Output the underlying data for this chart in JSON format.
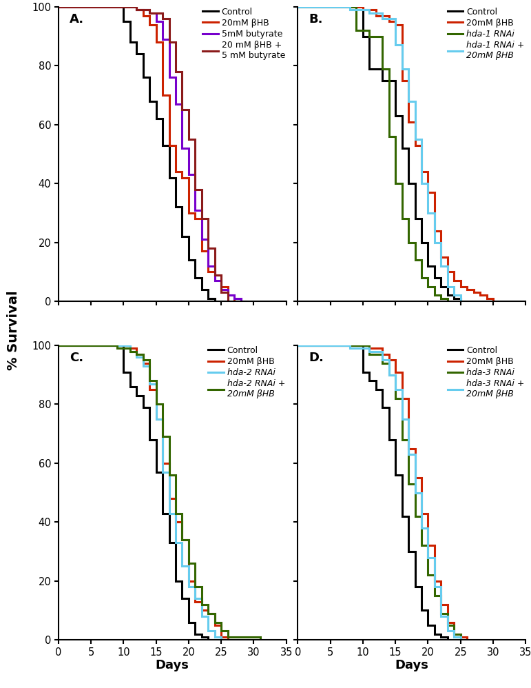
{
  "panel_A": {
    "label": "A.",
    "series": [
      {
        "name": "Control",
        "color": "#000000",
        "lw": 2.2,
        "x": [
          0,
          10,
          10,
          11,
          11,
          12,
          12,
          13,
          13,
          14,
          14,
          15,
          15,
          16,
          16,
          17,
          17,
          18,
          18,
          19,
          19,
          20,
          20,
          21,
          21,
          22,
          22,
          23,
          23,
          24,
          24
        ],
        "y": [
          100,
          100,
          95,
          95,
          88,
          88,
          84,
          84,
          76,
          76,
          68,
          68,
          62,
          62,
          53,
          53,
          42,
          42,
          32,
          32,
          22,
          22,
          14,
          14,
          8,
          8,
          4,
          4,
          1,
          1,
          0
        ]
      },
      {
        "name": "20mM βHB",
        "color": "#cc2200",
        "lw": 2.2,
        "x": [
          0,
          12,
          12,
          13,
          13,
          14,
          14,
          15,
          15,
          16,
          16,
          17,
          17,
          18,
          18,
          19,
          19,
          20,
          20,
          21,
          21,
          22,
          22,
          23,
          23,
          24,
          24,
          25,
          25,
          26,
          26,
          27,
          27
        ],
        "y": [
          100,
          100,
          99,
          99,
          97,
          97,
          94,
          94,
          88,
          88,
          70,
          70,
          53,
          53,
          44,
          44,
          42,
          42,
          30,
          30,
          28,
          28,
          17,
          17,
          10,
          10,
          9,
          9,
          5,
          5,
          2,
          2,
          0
        ]
      },
      {
        "name": "5mM butyrate",
        "color": "#7700cc",
        "lw": 2.2,
        "x": [
          0,
          12,
          12,
          14,
          14,
          15,
          15,
          16,
          16,
          17,
          17,
          18,
          18,
          19,
          19,
          20,
          20,
          21,
          21,
          22,
          22,
          23,
          23,
          24,
          24,
          25,
          25,
          26,
          26,
          27,
          27,
          28,
          28,
          29,
          29
        ],
        "y": [
          100,
          100,
          99,
          99,
          98,
          98,
          95,
          95,
          89,
          89,
          76,
          76,
          67,
          67,
          52,
          52,
          43,
          43,
          31,
          31,
          21,
          21,
          12,
          12,
          7,
          7,
          4,
          4,
          2,
          2,
          1,
          1,
          0,
          0,
          0
        ]
      },
      {
        "name": "20 mM βHB +\n5 mM butyrate",
        "color": "#8B1A1A",
        "lw": 2.2,
        "x": [
          0,
          12,
          12,
          14,
          14,
          16,
          16,
          17,
          17,
          18,
          18,
          19,
          19,
          20,
          20,
          21,
          21,
          22,
          22,
          23,
          23,
          24,
          24,
          25,
          25,
          26,
          26
        ],
        "y": [
          100,
          100,
          99,
          99,
          98,
          98,
          96,
          96,
          88,
          88,
          78,
          78,
          65,
          65,
          55,
          55,
          38,
          38,
          28,
          28,
          18,
          18,
          9,
          9,
          3,
          3,
          0
        ]
      }
    ],
    "legend_labels": [
      "Control",
      "20mM βHB",
      "5mM butyrate",
      "20 mM βHB +\n5 mM butyrate"
    ],
    "legend_italic": [
      false,
      false,
      false,
      false
    ]
  },
  "panel_B": {
    "label": "B.",
    "series": [
      {
        "name": "Control",
        "color": "#000000",
        "lw": 2.2,
        "x": [
          0,
          10,
          10,
          11,
          11,
          13,
          13,
          15,
          15,
          16,
          16,
          17,
          17,
          18,
          18,
          19,
          19,
          20,
          20,
          21,
          21,
          22,
          22,
          23,
          23,
          24,
          24,
          25,
          25
        ],
        "y": [
          100,
          100,
          90,
          90,
          79,
          79,
          75,
          75,
          63,
          63,
          52,
          52,
          40,
          40,
          28,
          28,
          20,
          20,
          12,
          12,
          8,
          8,
          5,
          5,
          2,
          2,
          1,
          1,
          0
        ]
      },
      {
        "name": "20mM βHB",
        "color": "#cc2200",
        "lw": 2.2,
        "x": [
          0,
          10,
          10,
          12,
          12,
          14,
          14,
          15,
          15,
          16,
          16,
          17,
          17,
          18,
          18,
          19,
          19,
          20,
          20,
          21,
          21,
          22,
          22,
          23,
          23,
          24,
          24,
          25,
          25,
          26,
          26,
          27,
          27,
          28,
          28,
          29,
          29,
          30,
          30
        ],
        "y": [
          100,
          100,
          99,
          99,
          97,
          97,
          95,
          95,
          94,
          94,
          75,
          75,
          61,
          61,
          53,
          53,
          44,
          44,
          37,
          37,
          24,
          24,
          15,
          15,
          10,
          10,
          7,
          7,
          5,
          5,
          4,
          4,
          3,
          3,
          2,
          2,
          1,
          1,
          0
        ]
      },
      {
        "name": "hda-1 RNAi",
        "color": "#336600",
        "lw": 2.2,
        "x": [
          0,
          9,
          9,
          11,
          11,
          13,
          13,
          14,
          14,
          15,
          15,
          16,
          16,
          17,
          17,
          18,
          18,
          19,
          19,
          20,
          20,
          21,
          21,
          22,
          22,
          23,
          23
        ],
        "y": [
          100,
          100,
          92,
          92,
          90,
          90,
          79,
          79,
          56,
          56,
          40,
          40,
          28,
          28,
          20,
          20,
          14,
          14,
          8,
          8,
          5,
          5,
          2,
          2,
          1,
          1,
          0
        ]
      },
      {
        "name": "hda-1 RNAi +\n20mM βHB",
        "color": "#66ccee",
        "lw": 2.2,
        "x": [
          0,
          8,
          8,
          11,
          11,
          13,
          13,
          15,
          15,
          16,
          16,
          17,
          17,
          18,
          18,
          19,
          19,
          20,
          20,
          21,
          21,
          22,
          22,
          23,
          23,
          24,
          24,
          25,
          25
        ],
        "y": [
          100,
          100,
          99,
          99,
          98,
          98,
          96,
          96,
          87,
          87,
          79,
          79,
          68,
          68,
          55,
          55,
          40,
          40,
          30,
          30,
          20,
          20,
          12,
          12,
          5,
          5,
          2,
          2,
          0
        ]
      }
    ],
    "legend_labels": [
      "Control",
      "20mM βHB",
      "hda-1 RNAi",
      "hda-1 RNAi +\n20mM βHB"
    ],
    "legend_italic": [
      false,
      false,
      true,
      true
    ]
  },
  "panel_C": {
    "label": "C.",
    "series": [
      {
        "name": "Control",
        "color": "#000000",
        "lw": 2.2,
        "x": [
          0,
          10,
          10,
          11,
          11,
          12,
          12,
          13,
          13,
          14,
          14,
          15,
          15,
          16,
          16,
          17,
          17,
          18,
          18,
          19,
          19,
          20,
          20,
          21,
          21,
          22,
          22,
          23,
          23,
          24,
          24
        ],
        "y": [
          100,
          100,
          91,
          91,
          86,
          86,
          83,
          83,
          79,
          79,
          68,
          68,
          57,
          57,
          43,
          43,
          33,
          33,
          20,
          20,
          14,
          14,
          6,
          6,
          2,
          2,
          1,
          1,
          0,
          0,
          0
        ]
      },
      {
        "name": "20mM βHB",
        "color": "#cc2200",
        "lw": 2.2,
        "x": [
          0,
          11,
          11,
          12,
          12,
          13,
          13,
          14,
          14,
          15,
          15,
          16,
          16,
          17,
          17,
          18,
          18,
          19,
          19,
          20,
          20,
          21,
          21,
          22,
          22,
          23,
          23,
          24,
          24,
          25,
          25,
          26,
          26
        ],
        "y": [
          100,
          100,
          99,
          99,
          97,
          97,
          94,
          94,
          85,
          85,
          75,
          75,
          60,
          60,
          48,
          48,
          40,
          40,
          34,
          34,
          20,
          20,
          13,
          13,
          10,
          10,
          9,
          9,
          5,
          5,
          1,
          1,
          0
        ]
      },
      {
        "name": "hda-2 RNAi",
        "color": "#66ccee",
        "lw": 2.2,
        "x": [
          0,
          11,
          11,
          12,
          12,
          13,
          13,
          14,
          14,
          15,
          15,
          16,
          16,
          17,
          17,
          18,
          18,
          19,
          19,
          20,
          20,
          21,
          21,
          22,
          22,
          23,
          23,
          24,
          24,
          25,
          25
        ],
        "y": [
          100,
          100,
          98,
          98,
          96,
          96,
          93,
          93,
          87,
          87,
          75,
          75,
          57,
          57,
          43,
          43,
          33,
          33,
          25,
          25,
          18,
          18,
          14,
          14,
          8,
          8,
          3,
          3,
          1,
          1,
          0
        ]
      },
      {
        "name": "hda-2 RNAi +\n20mM βHB",
        "color": "#336600",
        "lw": 2.2,
        "x": [
          0,
          9,
          9,
          11,
          11,
          12,
          12,
          13,
          13,
          14,
          14,
          15,
          15,
          16,
          16,
          17,
          17,
          18,
          18,
          19,
          19,
          20,
          20,
          21,
          21,
          22,
          22,
          23,
          23,
          24,
          24,
          25,
          25,
          26,
          26,
          31,
          31
        ],
        "y": [
          100,
          100,
          99,
          99,
          98,
          98,
          97,
          97,
          95,
          95,
          88,
          88,
          80,
          80,
          69,
          69,
          56,
          56,
          43,
          43,
          34,
          34,
          26,
          26,
          18,
          18,
          12,
          12,
          9,
          9,
          6,
          6,
          3,
          3,
          1,
          1,
          0
        ]
      }
    ],
    "legend_labels": [
      "Control",
      "20mM βHB",
      "hda-2 RNAi",
      "hda-2 RNAi +\n20mM βHB"
    ],
    "legend_italic": [
      false,
      false,
      true,
      true
    ]
  },
  "panel_D": {
    "label": "D.",
    "series": [
      {
        "name": "Control",
        "color": "#000000",
        "lw": 2.2,
        "x": [
          0,
          10,
          10,
          11,
          11,
          12,
          12,
          13,
          13,
          14,
          14,
          15,
          15,
          16,
          16,
          17,
          17,
          18,
          18,
          19,
          19,
          20,
          20,
          21,
          21,
          22,
          22,
          23,
          23
        ],
        "y": [
          100,
          100,
          91,
          91,
          88,
          88,
          85,
          85,
          79,
          79,
          68,
          68,
          56,
          56,
          42,
          42,
          30,
          30,
          18,
          18,
          10,
          10,
          5,
          5,
          2,
          2,
          1,
          1,
          0
        ]
      },
      {
        "name": "20mM βHB",
        "color": "#cc2200",
        "lw": 2.2,
        "x": [
          0,
          11,
          11,
          13,
          13,
          14,
          14,
          15,
          15,
          16,
          16,
          17,
          17,
          18,
          18,
          19,
          19,
          20,
          20,
          21,
          21,
          22,
          22,
          23,
          23,
          24,
          24,
          25,
          25,
          26,
          26
        ],
        "y": [
          100,
          100,
          99,
          99,
          97,
          97,
          95,
          95,
          91,
          91,
          82,
          82,
          65,
          65,
          55,
          55,
          43,
          43,
          32,
          32,
          20,
          20,
          12,
          12,
          6,
          6,
          2,
          2,
          1,
          1,
          0
        ]
      },
      {
        "name": "hda-3 RNAi",
        "color": "#336600",
        "lw": 2.2,
        "x": [
          0,
          11,
          11,
          13,
          13,
          14,
          14,
          15,
          15,
          16,
          16,
          17,
          17,
          18,
          18,
          19,
          19,
          20,
          20,
          21,
          21,
          22,
          22,
          23,
          23,
          24,
          24,
          25,
          25
        ],
        "y": [
          100,
          100,
          97,
          97,
          94,
          94,
          90,
          90,
          82,
          82,
          68,
          68,
          53,
          53,
          42,
          42,
          32,
          32,
          22,
          22,
          15,
          15,
          9,
          9,
          5,
          5,
          2,
          2,
          0
        ]
      },
      {
        "name": "hda-3 RNAi +\n20mM βHB",
        "color": "#66ccee",
        "lw": 2.2,
        "x": [
          0,
          8,
          8,
          11,
          11,
          13,
          13,
          14,
          14,
          15,
          15,
          16,
          16,
          17,
          17,
          18,
          18,
          19,
          19,
          20,
          20,
          21,
          21,
          22,
          22,
          23,
          23,
          24,
          24,
          25,
          25
        ],
        "y": [
          100,
          100,
          99,
          99,
          98,
          98,
          95,
          95,
          90,
          90,
          85,
          85,
          75,
          75,
          63,
          63,
          50,
          50,
          38,
          38,
          28,
          28,
          18,
          18,
          8,
          8,
          3,
          3,
          1,
          1,
          0
        ]
      }
    ],
    "legend_labels": [
      "Control",
      "20mM βHB",
      "hda-3 RNAi",
      "hda-3 RNAi +\n20mM βHB"
    ],
    "legend_italic": [
      false,
      false,
      true,
      true
    ]
  },
  "ylabel": "% Survival",
  "xlabel": "Days",
  "xlim": [
    0,
    35
  ],
  "ylim": [
    0,
    100
  ],
  "xticks": [
    0,
    5,
    10,
    15,
    20,
    25,
    30,
    35
  ],
  "yticks": [
    0,
    20,
    40,
    60,
    80,
    100
  ]
}
